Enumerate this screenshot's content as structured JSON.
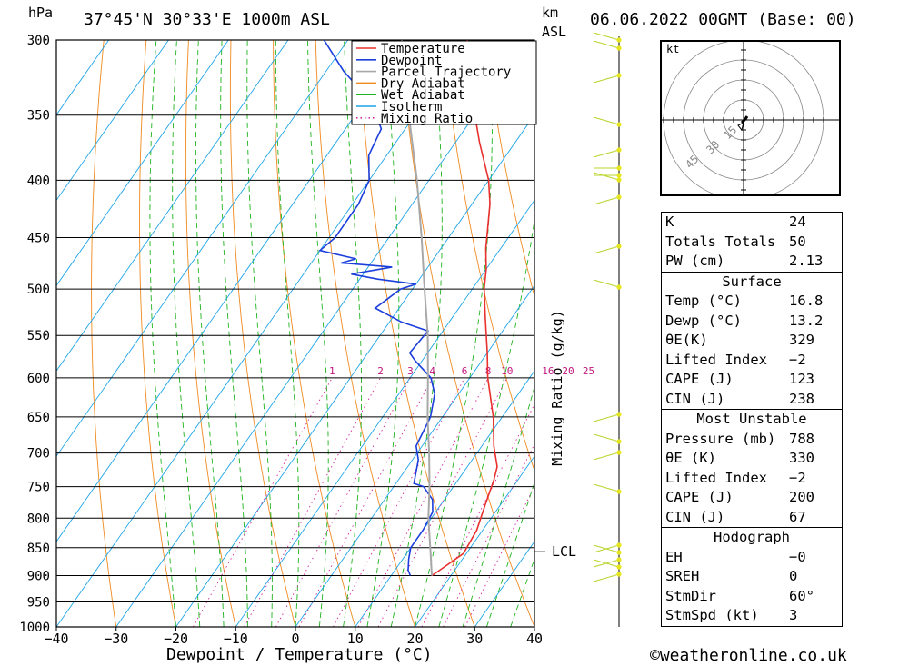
{
  "header": {
    "pressure_unit": "hPa",
    "location": "37°45'N  30°33'E  1000m  ASL",
    "height_unit_top": "km",
    "height_unit_bottom": "ASL",
    "datetime": "06.06.2022  00GMT  (Base: 00)"
  },
  "footer": {
    "copyright": "©weatheronline.co.uk"
  },
  "chart_data": {
    "type": "line",
    "title": "37°45'N  30°33'E  1000m  ASL",
    "xlabel": "Dewpoint / Temperature (°C)",
    "ylabel": "hPa",
    "right_axis_label": "Mixing Ratio (g/kg)",
    "xlim": [
      -40,
      40
    ],
    "ylim": [
      1000,
      300
    ],
    "x_ticks": [
      "−40",
      "−30",
      "−20",
      "−10",
      "0",
      "10",
      "20",
      "30",
      "40"
    ],
    "pressure_levels": [
      300,
      350,
      400,
      450,
      500,
      550,
      600,
      650,
      700,
      750,
      800,
      850,
      900,
      950,
      1000
    ],
    "mixing_ratio_labels": [
      "1",
      "2",
      "3",
      "4",
      "6",
      "8",
      "10",
      "16",
      "20",
      "25"
    ],
    "lcl_label": "LCL",
    "lcl_pressure": 857,
    "legend": [
      "Temperature",
      "Dewpoint",
      "Parcel Trajectory",
      "Dry Adiabat",
      "Wet Adiabat",
      "Isotherm",
      "Mixing Ratio"
    ],
    "series": [
      {
        "name": "Temperature",
        "color": "#e8302e",
        "points": [
          [
            900,
            16.8
          ],
          [
            890,
            17.5
          ],
          [
            860,
            19.5
          ],
          [
            820,
            19
          ],
          [
            780,
            17.5
          ],
          [
            740,
            16
          ],
          [
            720,
            15
          ],
          [
            690,
            12
          ],
          [
            650,
            8.5
          ],
          [
            600,
            3
          ],
          [
            570,
            0
          ],
          [
            530,
            -4.5
          ],
          [
            500,
            -8
          ],
          [
            480,
            -10
          ],
          [
            460,
            -12.5
          ],
          [
            420,
            -17
          ],
          [
            400,
            -20
          ],
          [
            370,
            -26
          ],
          [
            340,
            -32
          ],
          [
            300,
            -40
          ]
        ]
      },
      {
        "name": "Dewpoint",
        "color": "#1c3fdc",
        "points": [
          [
            900,
            13.2
          ],
          [
            890,
            12.2
          ],
          [
            870,
            11
          ],
          [
            850,
            10
          ],
          [
            820,
            10
          ],
          [
            790,
            9.5
          ],
          [
            770,
            8
          ],
          [
            750,
            5
          ],
          [
            745,
            3
          ],
          [
            710,
            1
          ],
          [
            690,
            -1
          ],
          [
            650,
            -2
          ],
          [
            620,
            -4
          ],
          [
            600,
            -6.5
          ],
          [
            580,
            -11
          ],
          [
            570,
            -13
          ],
          [
            545,
            -12.5
          ],
          [
            535,
            -18
          ],
          [
            520,
            -24
          ],
          [
            510,
            -23
          ],
          [
            500,
            -22
          ],
          [
            495,
            -20
          ],
          [
            490,
            -27
          ],
          [
            485,
            -32
          ],
          [
            478,
            -26
          ],
          [
            474,
            -35
          ],
          [
            470,
            -33
          ],
          [
            462,
            -40
          ],
          [
            450,
            -39
          ],
          [
            420,
            -39
          ],
          [
            400,
            -40
          ],
          [
            380,
            -43
          ],
          [
            360,
            -44
          ],
          [
            340,
            -49
          ],
          [
            320,
            -57
          ],
          [
            300,
            -64
          ]
        ]
      },
      {
        "name": "Parcel Trajectory",
        "color": "#a8a8a8",
        "points": [
          [
            900,
            16.8
          ],
          [
            860,
            14
          ],
          [
            800,
            9.5
          ],
          [
            750,
            6
          ],
          [
            700,
            2
          ],
          [
            650,
            -2.5
          ],
          [
            600,
            -7
          ],
          [
            550,
            -12
          ],
          [
            500,
            -18
          ],
          [
            450,
            -24.5
          ],
          [
            400,
            -32
          ],
          [
            350,
            -41
          ],
          [
            300,
            -51
          ]
        ]
      }
    ]
  },
  "hodograph": {
    "unit": "kt",
    "ring_labels": [
      "15",
      "30",
      "45"
    ]
  },
  "stats": {
    "indices": [
      {
        "label": "K",
        "value": "24"
      },
      {
        "label": "Totals Totals",
        "value": "50"
      },
      {
        "label": "PW (cm)",
        "value": "2.13"
      }
    ],
    "surface": {
      "title": "Surface",
      "rows": [
        {
          "label": "Temp (°C)",
          "value": "16.8"
        },
        {
          "label": "Dewp (°C)",
          "value": "13.2"
        },
        {
          "label": "θE(K)",
          "value": "329"
        },
        {
          "label": "Lifted Index",
          "value": "−2"
        },
        {
          "label": "CAPE (J)",
          "value": "123"
        },
        {
          "label": "CIN (J)",
          "value": "238"
        }
      ]
    },
    "most_unstable": {
      "title": "Most Unstable",
      "rows": [
        {
          "label": "Pressure (mb)",
          "value": "788"
        },
        {
          "label": "θE (K)",
          "value": "330"
        },
        {
          "label": "Lifted Index",
          "value": "−2"
        },
        {
          "label": "CAPE (J)",
          "value": "200"
        },
        {
          "label": "CIN (J)",
          "value": "67"
        }
      ]
    },
    "hodograph": {
      "title": "Hodograph",
      "rows": [
        {
          "label": "EH",
          "value": "−0"
        },
        {
          "label": "SREH",
          "value": "0"
        },
        {
          "label": "StmDir",
          "value": "60°"
        },
        {
          "label": "StmSpd (kt)",
          "value": "3"
        }
      ]
    }
  }
}
